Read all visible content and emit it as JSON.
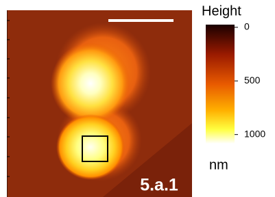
{
  "image": {
    "label": "5.a.1"
  },
  "colorbar": {
    "title": "Height",
    "unit": "nm",
    "range": [
      -25,
      1085
    ],
    "ticks": [
      0,
      500,
      1000
    ]
  }
}
